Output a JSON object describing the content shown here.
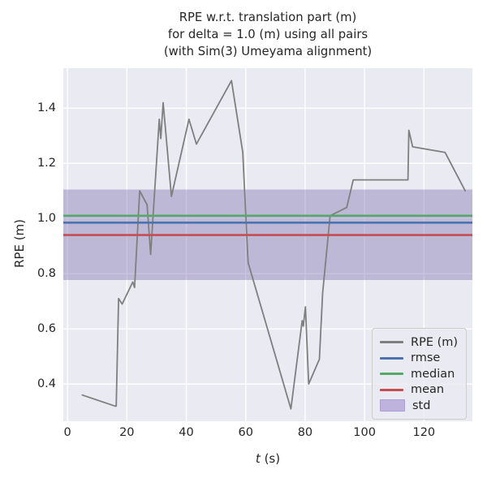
{
  "title": {
    "line1": "RPE w.r.t. translation part (m)",
    "line2": "for delta = 1.0 (m) using all pairs",
    "line3": "(with Sim(3) Umeyama alignment)"
  },
  "colors": {
    "figure_bg": "#ffffff",
    "axes_bg": "#eaeaf2",
    "grid": "#ffffff",
    "rpe_line": "#7f7f7f",
    "rmse": "#4c72b0",
    "median": "#55a868",
    "mean": "#c44e52",
    "std_band": "#8172b2",
    "text": "#262626"
  },
  "chart_data": {
    "type": "line",
    "title": "RPE w.r.t. translation part (m) for delta = 1.0 (m) using all pairs (with Sim(3) Umeyama alignment)",
    "xlabel": "t (s)",
    "xlabel_var": "t",
    "xlabel_rest": " (s)",
    "ylabel": "RPE (m)",
    "xlim": [
      -1.4,
      136.3
    ],
    "ylim": [
      0.265,
      1.545
    ],
    "xticks": [
      0,
      20,
      40,
      60,
      80,
      100,
      120
    ],
    "yticks": [
      0.4,
      0.6,
      0.8,
      1.0,
      1.2,
      1.4
    ],
    "grid": true,
    "legend_position": "lower right",
    "series": [
      {
        "name": "RPE (m)",
        "kind": "line",
        "color": "#7f7f7f",
        "points": [
          [
            5.0,
            0.36
          ],
          [
            16.0,
            0.32
          ],
          [
            16.4,
            0.32
          ],
          [
            17.2,
            0.71
          ],
          [
            18.4,
            0.69
          ],
          [
            22.0,
            0.77
          ],
          [
            22.6,
            0.75
          ],
          [
            24.3,
            1.1
          ],
          [
            26.8,
            1.05
          ],
          [
            28.0,
            0.87
          ],
          [
            30.9,
            1.36
          ],
          [
            31.4,
            1.29
          ],
          [
            32.2,
            1.42
          ],
          [
            35.0,
            1.08
          ],
          [
            40.9,
            1.36
          ],
          [
            43.4,
            1.27
          ],
          [
            55.2,
            1.5
          ],
          [
            59.0,
            1.24
          ],
          [
            60.0,
            1.02
          ],
          [
            60.8,
            0.84
          ],
          [
            75.2,
            0.31
          ],
          [
            79.0,
            0.63
          ],
          [
            79.4,
            0.61
          ],
          [
            80.1,
            0.68
          ],
          [
            81.2,
            0.4
          ],
          [
            84.8,
            0.49
          ],
          [
            85.9,
            0.73
          ],
          [
            88.4,
            1.01
          ],
          [
            94.0,
            1.04
          ],
          [
            96.2,
            1.14
          ],
          [
            114.6,
            1.14
          ],
          [
            114.9,
            1.32
          ],
          [
            116.2,
            1.26
          ],
          [
            127.1,
            1.24
          ],
          [
            133.9,
            1.1
          ]
        ]
      },
      {
        "name": "rmse",
        "kind": "hline",
        "color": "#4c72b0",
        "value": 0.985
      },
      {
        "name": "median",
        "kind": "hline",
        "color": "#55a868",
        "value": 1.01
      },
      {
        "name": "mean",
        "kind": "hline",
        "color": "#c44e52",
        "value": 0.94
      },
      {
        "name": "std",
        "kind": "band",
        "color": "#8172b2",
        "alpha": 0.42,
        "range": [
          0.777,
          1.105
        ]
      }
    ],
    "legend_entries": [
      {
        "label": "RPE (m)",
        "color": "#7f7f7f",
        "swatch": "line"
      },
      {
        "label": "rmse",
        "color": "#4c72b0",
        "swatch": "line"
      },
      {
        "label": "median",
        "color": "#55a868",
        "swatch": "line"
      },
      {
        "label": "mean",
        "color": "#c44e52",
        "swatch": "line"
      },
      {
        "label": "std",
        "color": "#bdb3dc",
        "swatch": "patch"
      }
    ]
  }
}
